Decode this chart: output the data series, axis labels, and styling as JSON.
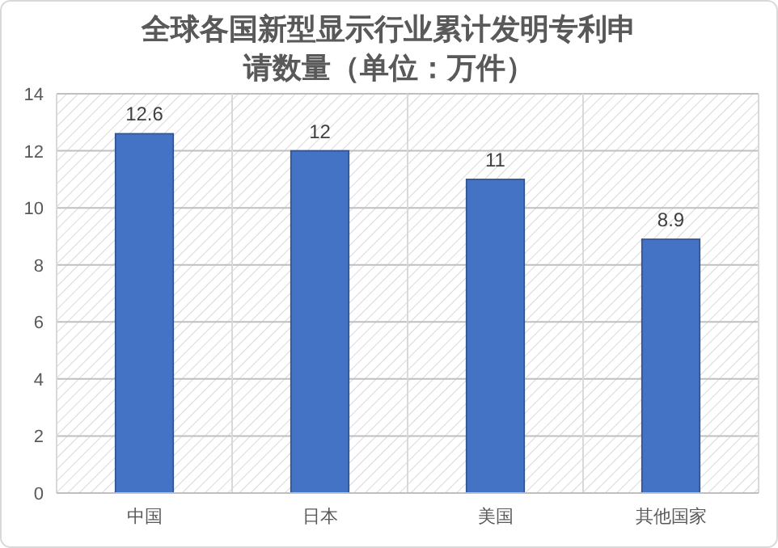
{
  "chart_data": {
    "type": "bar",
    "title": "全球各国新型显示行业累计发明专利申请数量（单位：万件）",
    "categories": [
      "中国",
      "日本",
      "美国",
      "其他国家"
    ],
    "values": [
      12.6,
      12,
      11,
      8.9
    ],
    "color": "#4472c4",
    "ylim": [
      0,
      14
    ],
    "yticks": [
      0,
      2,
      4,
      6,
      8,
      10,
      12,
      14
    ],
    "grid": true,
    "data_labels": true
  }
}
